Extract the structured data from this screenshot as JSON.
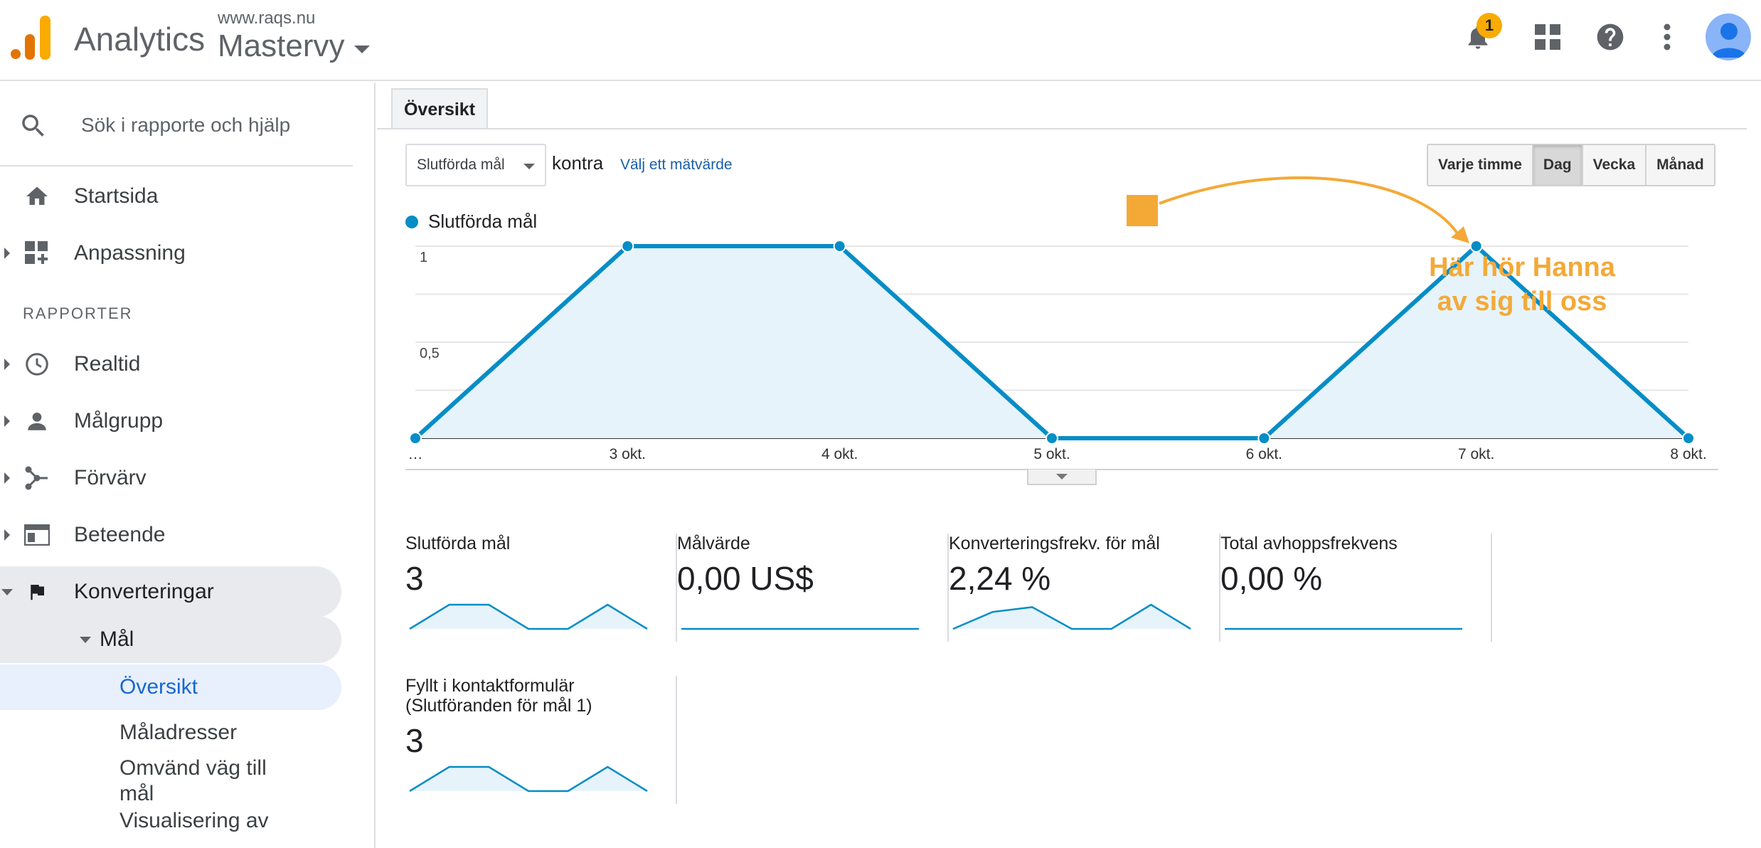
{
  "header": {
    "app_name": "Analytics",
    "site": "www.raqs.nu",
    "view": "Mastervy",
    "notification_count": "1",
    "icons": [
      "bell-icon",
      "apps-grid-icon",
      "help-icon",
      "more-vert-icon",
      "avatar"
    ]
  },
  "sidebar": {
    "search_placeholder": "Sök i rapporte och hjälp",
    "items_top": [
      {
        "label": "Startsida",
        "icon": "home-icon"
      },
      {
        "label": "Anpassning",
        "icon": "dashboard-plus-icon"
      }
    ],
    "section_title": "RAPPORTER",
    "reports": [
      {
        "label": "Realtid",
        "icon": "clock-icon"
      },
      {
        "label": "Målgrupp",
        "icon": "person-icon"
      },
      {
        "label": "Förvärv",
        "icon": "acquisition-icon"
      },
      {
        "label": "Beteende",
        "icon": "behavior-icon"
      },
      {
        "label": "Konverteringar",
        "icon": "flag-icon"
      }
    ],
    "goal_label": "Mål",
    "goal_children": [
      "Översikt",
      "Måladresser",
      "Omvänd väg till mål",
      "Visualisering av"
    ]
  },
  "main": {
    "tab": "Översikt",
    "metric_select": "Slutförda mål",
    "versus": "kontra",
    "choose_metric": "Välj ett mätvärde",
    "periods": [
      "Varje timme",
      "Dag",
      "Vecka",
      "Månad"
    ],
    "active_period": "Dag",
    "annotation": [
      "Här hör Hanna",
      "av sig till oss"
    ],
    "accent_color": "#058dc7",
    "annotation_color": "#f4a937"
  },
  "chart_data": {
    "type": "area",
    "x": [
      "…",
      "3 okt.",
      "4 okt.",
      "5 okt.",
      "6 okt.",
      "7 okt.",
      "8 okt."
    ],
    "series": [
      {
        "name": "Slutförda mål",
        "values": [
          0,
          1,
          1,
          0,
          0,
          1,
          0
        ]
      }
    ],
    "y_ticks": [
      "1",
      "0,5"
    ],
    "ylim": [
      0,
      1
    ],
    "grid": true,
    "legend": "top-left"
  },
  "scorecards": [
    {
      "label": "Slutförda mål",
      "value": "3",
      "spark": [
        0,
        1,
        1,
        0,
        0,
        1,
        0
      ],
      "fill": true
    },
    {
      "label": "Målvärde",
      "value": "0,00 US$",
      "spark": [
        0,
        0,
        0,
        0,
        0,
        0,
        0
      ],
      "fill": false
    },
    {
      "label": "Konverteringsfrekv. för mål",
      "value": "2,24 %",
      "spark": [
        0,
        0.7,
        0.9,
        0,
        0,
        1,
        0
      ],
      "fill": true
    },
    {
      "label": "Total avhoppsfrekvens",
      "value": "0,00 %",
      "spark": [
        0,
        0,
        0,
        0,
        0,
        0,
        0
      ],
      "fill": false
    },
    {
      "label": "Fyllt i kontaktformulär (Slutföranden för mål 1)",
      "value": "3",
      "spark": [
        0,
        1,
        1,
        0,
        0,
        1,
        0
      ],
      "fill": true
    }
  ]
}
